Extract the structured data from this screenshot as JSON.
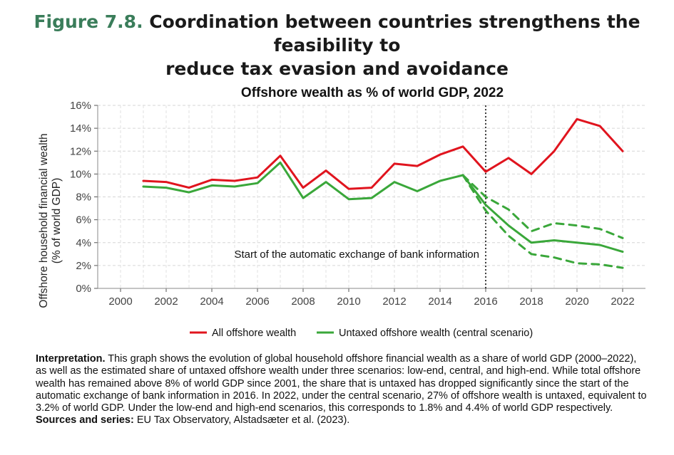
{
  "figure": {
    "number": "Figure 7.8.",
    "title_line1": "Coordination between countries strengthens the feasibility to",
    "title_line2": "reduce tax evasion and avoidance"
  },
  "interpretation": {
    "label": "Interpretation.",
    "text": "This graph shows the evolution of global household offshore financial wealth as a share of world GDP (2000–2022), as well as the estimated share of untaxed offshore wealth under three scenarios: low-end, central, and high-end. While total offshore wealth has remained above 8% of world GDP since 2001, the share that is untaxed has dropped significantly since the start of the automatic exchange of bank information in 2016. In 2022, under the central scenario, 27% of offshore wealth is untaxed, equivalent to 3.2% of world GDP. Under the low-end and high-end scenarios, this corresponds to 1.8% and 4.4% of world GDP respectively.",
    "sources_label": "Sources and series:",
    "sources_text": "EU Tax Observatory, Alstadsæter et al. (2023)."
  },
  "chart_data": {
    "type": "line",
    "title": "Offshore wealth as % of world GDP, 2022",
    "ylabel_line1": "Offshore household financial wealth",
    "ylabel_line2": "(% of world GDP)",
    "xlabel": "",
    "xlim": [
      1999,
      2023
    ],
    "ylim": [
      0,
      16
    ],
    "x_ticks": [
      "2000",
      "2002",
      "2004",
      "2006",
      "2008",
      "2010",
      "2012",
      "2014",
      "2016",
      "2018",
      "2020",
      "2022"
    ],
    "y_ticks": [
      "0%",
      "2%",
      "4%",
      "6%",
      "8%",
      "10%",
      "12%",
      "14%",
      "16%"
    ],
    "grid": true,
    "legend_position": "bottom",
    "vline": {
      "x": 2016,
      "label": "Start of the automatic exchange of bank information"
    },
    "colors": {
      "red": "#e0141e",
      "green": "#3aa73a"
    },
    "series": [
      {
        "name": "All offshore wealth",
        "color": "#e0141e",
        "style": "solid",
        "x": [
          2001,
          2002,
          2003,
          2004,
          2005,
          2006,
          2007,
          2008,
          2009,
          2010,
          2011,
          2012,
          2013,
          2014,
          2015,
          2016,
          2017,
          2018,
          2019,
          2020,
          2021,
          2022
        ],
        "y": [
          9.4,
          9.3,
          8.8,
          9.5,
          9.4,
          9.7,
          11.6,
          8.8,
          10.3,
          8.7,
          8.8,
          10.9,
          10.7,
          11.7,
          12.4,
          10.2,
          11.4,
          10.0,
          12.0,
          14.8,
          14.2,
          12.0
        ]
      },
      {
        "name": "Untaxed offshore wealth (central scenario)",
        "color": "#3aa73a",
        "style": "solid",
        "x": [
          2001,
          2002,
          2003,
          2004,
          2005,
          2006,
          2007,
          2008,
          2009,
          2010,
          2011,
          2012,
          2013,
          2014,
          2015,
          2016,
          2017,
          2018,
          2019,
          2020,
          2021,
          2022
        ],
        "y": [
          8.9,
          8.8,
          8.4,
          9.0,
          8.9,
          9.2,
          11.0,
          7.9,
          9.3,
          7.8,
          7.9,
          9.3,
          8.5,
          9.4,
          9.9,
          7.3,
          5.5,
          4.0,
          4.2,
          4.0,
          3.8,
          3.2
        ]
      },
      {
        "color": "#3aa73a",
        "style": "dashed",
        "x": [
          2015,
          2016,
          2017,
          2018,
          2019,
          2020,
          2021,
          2022
        ],
        "y": [
          9.9,
          8.0,
          6.9,
          5.0,
          5.7,
          5.5,
          5.2,
          4.4
        ]
      },
      {
        "color": "#3aa73a",
        "style": "dashed",
        "x": [
          2015,
          2016,
          2017,
          2018,
          2019,
          2020,
          2021,
          2022
        ],
        "y": [
          9.9,
          6.8,
          4.6,
          3.0,
          2.7,
          2.2,
          2.1,
          1.8
        ]
      }
    ]
  }
}
